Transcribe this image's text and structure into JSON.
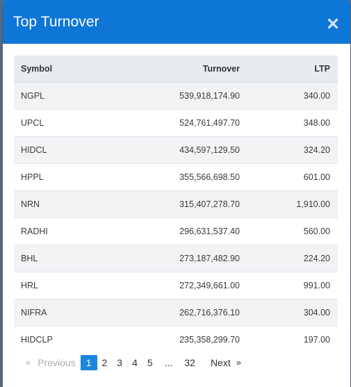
{
  "modal": {
    "title": "Top Turnover"
  },
  "table": {
    "headers": {
      "symbol": "Symbol",
      "turnover": "Turnover",
      "ltp": "LTP"
    },
    "rows": [
      {
        "symbol": "NGPL",
        "turnover": "539,918,174.90",
        "ltp": "340.00"
      },
      {
        "symbol": "UPCL",
        "turnover": "524,761,497.70",
        "ltp": "348.00"
      },
      {
        "symbol": "HIDCL",
        "turnover": "434,597,129.50",
        "ltp": "324.20"
      },
      {
        "symbol": "HPPL",
        "turnover": "355,566,698.50",
        "ltp": "601.00"
      },
      {
        "symbol": "NRN",
        "turnover": "315,407,278.70",
        "ltp": "1,910.00"
      },
      {
        "symbol": "RADHI",
        "turnover": "296,631,537.40",
        "ltp": "560.00"
      },
      {
        "symbol": "BHL",
        "turnover": "273,187,482.90",
        "ltp": "224.20"
      },
      {
        "symbol": "HRL",
        "turnover": "272,349,661.00",
        "ltp": "991.00"
      },
      {
        "symbol": "NIFRA",
        "turnover": "262,716,376.10",
        "ltp": "304.00"
      },
      {
        "symbol": "HIDCLP",
        "turnover": "235,358,299.70",
        "ltp": "197.00"
      }
    ]
  },
  "pagination": {
    "prev_chevron": "«",
    "previous": "Previous",
    "pages": [
      "1",
      "2",
      "3",
      "4",
      "5"
    ],
    "active_page": "1",
    "ellipsis": "...",
    "last_page": "32",
    "next": "Next",
    "next_chevron": "»"
  },
  "colors": {
    "header_bg": "#0e76d6",
    "active_page": "#1a86e0"
  }
}
